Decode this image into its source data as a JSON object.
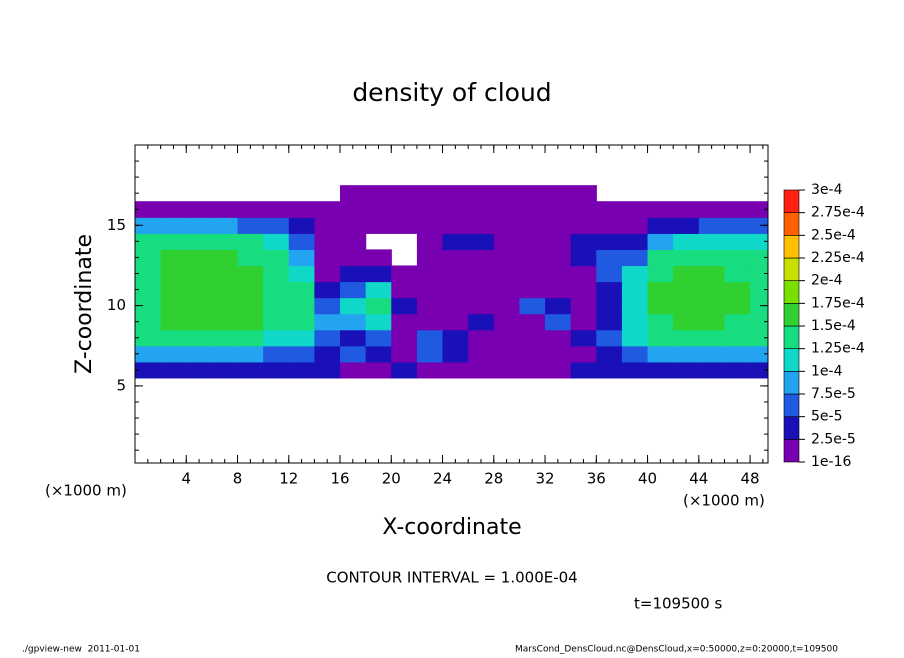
{
  "chart_data": {
    "type": "heatmap",
    "title": "density of cloud",
    "x_label": "X-coordinate",
    "y_label": "Z-coordinate",
    "x_unit": "(×1000 m)",
    "y_unit": "(×1000 m)",
    "contour_note": "CONTOUR INTERVAL = 1.000E-04",
    "time_note": "t=109500 s",
    "footer_left": "./gpview-new  2011-01-01",
    "footer_right": "MarsCond_DensCloud.nc@DensCloud,x=0:50000,z=0:20000,t=109500",
    "xlim": [
      0,
      49.4
    ],
    "ylim": [
      0.2,
      20
    ],
    "xticks": [
      4,
      8,
      12,
      16,
      20,
      24,
      28,
      32,
      36,
      40,
      44,
      48
    ],
    "yticks": [
      5,
      10,
      15
    ],
    "x": [
      1,
      3,
      5,
      7,
      9,
      11,
      13,
      15,
      17,
      19,
      21,
      23,
      25,
      27,
      29,
      31,
      33,
      35,
      37,
      39,
      41,
      43,
      45,
      47,
      49
    ],
    "y": [
      6,
      7,
      8,
      9,
      10,
      11,
      12,
      13,
      14,
      15,
      16,
      17
    ],
    "z": [
      [
        4e-05,
        4e-05,
        4e-05,
        4e-05,
        4e-05,
        4e-05,
        3e-05,
        4e-05,
        2e-05,
        2e-05,
        3e-05,
        1e-05,
        1e-05,
        2e-05,
        1e-05,
        1e-05,
        2e-05,
        3e-05,
        4e-05,
        4e-05,
        4e-05,
        4e-05,
        4e-05,
        4e-05,
        4e-05
      ],
      [
        8e-05,
        8e-05,
        8e-05,
        8e-05,
        8e-05,
        7e-05,
        6e-05,
        3e-05,
        5e-05,
        3e-05,
        2e-05,
        5e-05,
        3e-05,
        1e-05,
        2e-05,
        1e-05,
        1e-05,
        2e-05,
        3e-05,
        7e-05,
        8e-05,
        8e-05,
        8e-05,
        8e-05,
        8e-05
      ],
      [
        0.00013,
        0.00013,
        0.00013,
        0.00013,
        0.00013,
        0.00012,
        0.00011,
        6e-05,
        4e-05,
        6e-05,
        1e-05,
        7e-05,
        4e-05,
        2e-05,
        1e-05,
        1e-16,
        1e-05,
        4e-05,
        5e-05,
        0.00011,
        0.00013,
        0.00013,
        0.00013,
        0.00013,
        0.00013
      ],
      [
        0.000145,
        0.00015,
        0.000155,
        0.000155,
        0.00015,
        0.000145,
        0.00013,
        8e-05,
        9e-05,
        0.00012,
        2e-05,
        2e-05,
        1e-05,
        3e-05,
        1e-05,
        1e-05,
        5e-05,
        2e-05,
        4e-05,
        0.00012,
        0.000145,
        0.00015,
        0.00015,
        0.000145,
        0.000145
      ],
      [
        0.000145,
        0.000155,
        0.00016,
        0.00016,
        0.000155,
        0.000145,
        0.00013,
        5e-05,
        0.00011,
        0.00013,
        3e-05,
        1e-05,
        1e-05,
        1e-05,
        1e-16,
        6e-05,
        3e-05,
        1e-05,
        3e-05,
        0.00012,
        0.00015,
        0.000155,
        0.000155,
        0.00015,
        0.000145
      ],
      [
        0.000145,
        0.000155,
        0.00016,
        0.00016,
        0.000155,
        0.000145,
        0.00013,
        3e-05,
        6e-05,
        0.00012,
        1e-05,
        1e-16,
        1e-05,
        1e-05,
        1e-05,
        1e-05,
        1e-05,
        1e-05,
        4e-05,
        0.00012,
        0.00015,
        0.000155,
        0.000155,
        0.00015,
        0.000145
      ],
      [
        0.000145,
        0.00015,
        0.000155,
        0.000155,
        0.00015,
        0.00014,
        0.00012,
        2e-05,
        3e-05,
        3e-05,
        1e-16,
        1e-16,
        1e-16,
        1e-05,
        1e-05,
        1e-05,
        1e-05,
        1e-05,
        5e-05,
        0.00011,
        0.000145,
        0.00015,
        0.00015,
        0.000145,
        0.00014
      ],
      [
        0.000145,
        0.00015,
        0.00015,
        0.00015,
        0.000145,
        0.000135,
        9e-05,
        1e-05,
        1e-05,
        1e-05,
        null,
        1e-05,
        1e-05,
        2e-05,
        1e-05,
        1e-05,
        1e-05,
        3e-05,
        6e-05,
        7e-05,
        0.00013,
        0.000135,
        0.000135,
        0.00013,
        0.00013
      ],
      [
        0.00014,
        0.000145,
        0.000145,
        0.00014,
        0.00013,
        0.00011,
        6e-05,
        1e-05,
        1e-16,
        null,
        null,
        1e-05,
        3e-05,
        3e-05,
        2e-05,
        1e-05,
        2e-05,
        4e-05,
        3e-05,
        4e-05,
        9e-05,
        0.0001,
        0.0001,
        0.0001,
        0.00011
      ],
      [
        9e-05,
        9e-05,
        9e-05,
        8e-05,
        7e-05,
        5e-05,
        3e-05,
        1e-05,
        1e-16,
        1e-16,
        1e-16,
        1e-16,
        1e-05,
        1e-05,
        1e-05,
        1e-05,
        1e-05,
        1e-05,
        1e-05,
        1e-05,
        3e-05,
        4e-05,
        5e-05,
        6e-05,
        6e-05
      ],
      [
        1e-05,
        1e-05,
        1e-05,
        1e-05,
        1e-05,
        1e-05,
        1e-05,
        1e-16,
        1e-16,
        1e-16,
        1e-16,
        1e-16,
        1e-16,
        1e-16,
        1e-16,
        1e-16,
        1e-16,
        1e-16,
        1e-16,
        1e-16,
        1e-16,
        1e-16,
        1e-16,
        1e-16,
        1e-16
      ],
      [
        null,
        null,
        null,
        null,
        null,
        null,
        null,
        null,
        1e-16,
        1e-16,
        1e-16,
        1e-16,
        1e-16,
        1e-16,
        1e-16,
        1e-16,
        1e-16,
        1e-16,
        null,
        null,
        null,
        null,
        null,
        null,
        null
      ]
    ],
    "colorbar": {
      "levels": [
        {
          "value": 1e-16,
          "label": "1e-16"
        },
        {
          "value": 2.5e-05,
          "label": "2.5e-5"
        },
        {
          "value": 5e-05,
          "label": "5e-5"
        },
        {
          "value": 7.5e-05,
          "label": "7.5e-5"
        },
        {
          "value": 0.0001,
          "label": "1e-4"
        },
        {
          "value": 0.000125,
          "label": "1.25e-4"
        },
        {
          "value": 0.00015,
          "label": "1.5e-4"
        },
        {
          "value": 0.000175,
          "label": "1.75e-4"
        },
        {
          "value": 0.0002,
          "label": "2e-4"
        },
        {
          "value": 0.000225,
          "label": "2.25e-4"
        },
        {
          "value": 0.00025,
          "label": "2.5e-4"
        },
        {
          "value": 0.000275,
          "label": "2.75e-4"
        },
        {
          "value": 0.0003,
          "label": "3e-4"
        }
      ],
      "colors": [
        "#7800b0",
        "#1a10b8",
        "#1f5ae0",
        "#22a4f0",
        "#10d8c8",
        "#18dc80",
        "#30d030",
        "#78e000",
        "#c8e000",
        "#ffc000",
        "#ff6000",
        "#ff2010",
        "#ff8880"
      ]
    }
  }
}
